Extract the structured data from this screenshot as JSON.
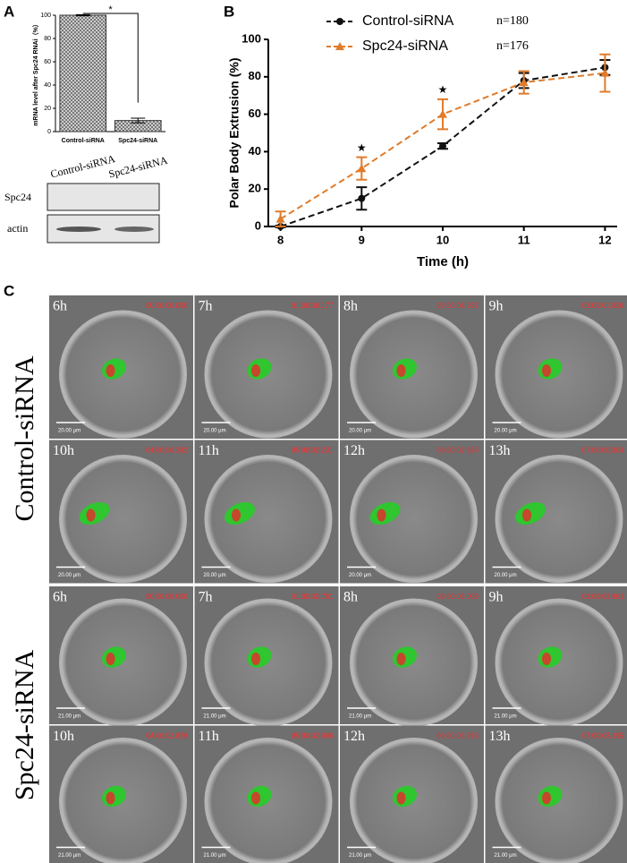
{
  "panel_labels": [
    "A",
    "B",
    "C"
  ],
  "chart_data": [
    {
      "type": "bar",
      "ylabel": "mRNA level after Spc24 RNAi（%）",
      "categories": [
        "Control-siRNA",
        "Spc24-siRNA"
      ],
      "values": [
        100,
        9.5
      ],
      "errors": [
        0.5,
        2
      ],
      "color": "#888888",
      "ylim": [
        0,
        100
      ],
      "yticks": [
        0,
        20,
        40,
        60,
        80,
        100
      ],
      "annotation": "*"
    },
    {
      "type": "line",
      "xlabel": "Time (h)",
      "ylabel": "Polar Body Extrusion (%)",
      "x": [
        8,
        9,
        10,
        11,
        12
      ],
      "xlim": [
        7.85,
        12.15
      ],
      "xticks": [
        8,
        9,
        10,
        11,
        12
      ],
      "ylim": [
        0,
        100
      ],
      "yticks": [
        0,
        20,
        40,
        60,
        80,
        100
      ],
      "series": [
        {
          "name": "Control-siRNA",
          "n": "n=180",
          "color": "#111111",
          "marker": "circle",
          "values": [
            0,
            15,
            43,
            78,
            85
          ],
          "errors": [
            0.5,
            6,
            1.5,
            4,
            4
          ]
        },
        {
          "name": "Spc24-siRNA",
          "n": "n=176",
          "color": "#e07b2a",
          "marker": "triangle",
          "values": [
            4,
            31,
            60,
            77,
            82
          ],
          "errors": [
            4,
            6,
            8,
            6,
            10
          ]
        }
      ],
      "annotations": [
        {
          "x": 9,
          "text": "★"
        },
        {
          "x": 10,
          "text": "★"
        }
      ]
    }
  ],
  "blot": {
    "lanes": [
      "Control-siRNA",
      "Spc24-siRNA"
    ],
    "bands": [
      "Spc24",
      "actin"
    ]
  },
  "timelapse": {
    "groups": [
      {
        "name": "Control-siRNA",
        "scale": "20.00 μm",
        "frames": [
          {
            "time": "6h",
            "stamp": "00:00:00.000"
          },
          {
            "time": "7h",
            "stamp": "01:00:06.177"
          },
          {
            "time": "8h",
            "stamp": "02:00:04.297"
          },
          {
            "time": "9h",
            "stamp": "03:00:01.826"
          },
          {
            "time": "10h",
            "stamp": "04:00:06.282"
          },
          {
            "time": "11h",
            "stamp": "05:00:02.231"
          },
          {
            "time": "12h",
            "stamp": "06:00:02.693"
          },
          {
            "time": "13h",
            "stamp": "07:00:00.804"
          }
        ]
      },
      {
        "name": "Spc24-siRNA",
        "scale": "21.00 μm",
        "frames": [
          {
            "time": "6h",
            "stamp": "00:00:00.000"
          },
          {
            "time": "7h",
            "stamp": "01:00:02.781"
          },
          {
            "time": "8h",
            "stamp": "02:00:03.009"
          },
          {
            "time": "9h",
            "stamp": "03:00:02.961"
          },
          {
            "time": "10h",
            "stamp": "04:00:02.826"
          },
          {
            "time": "11h",
            "stamp": "05:00:02.906"
          },
          {
            "time": "12h",
            "stamp": "06:00:03.269"
          },
          {
            "time": "13h",
            "stamp": "07:00:03.195"
          }
        ]
      }
    ]
  }
}
